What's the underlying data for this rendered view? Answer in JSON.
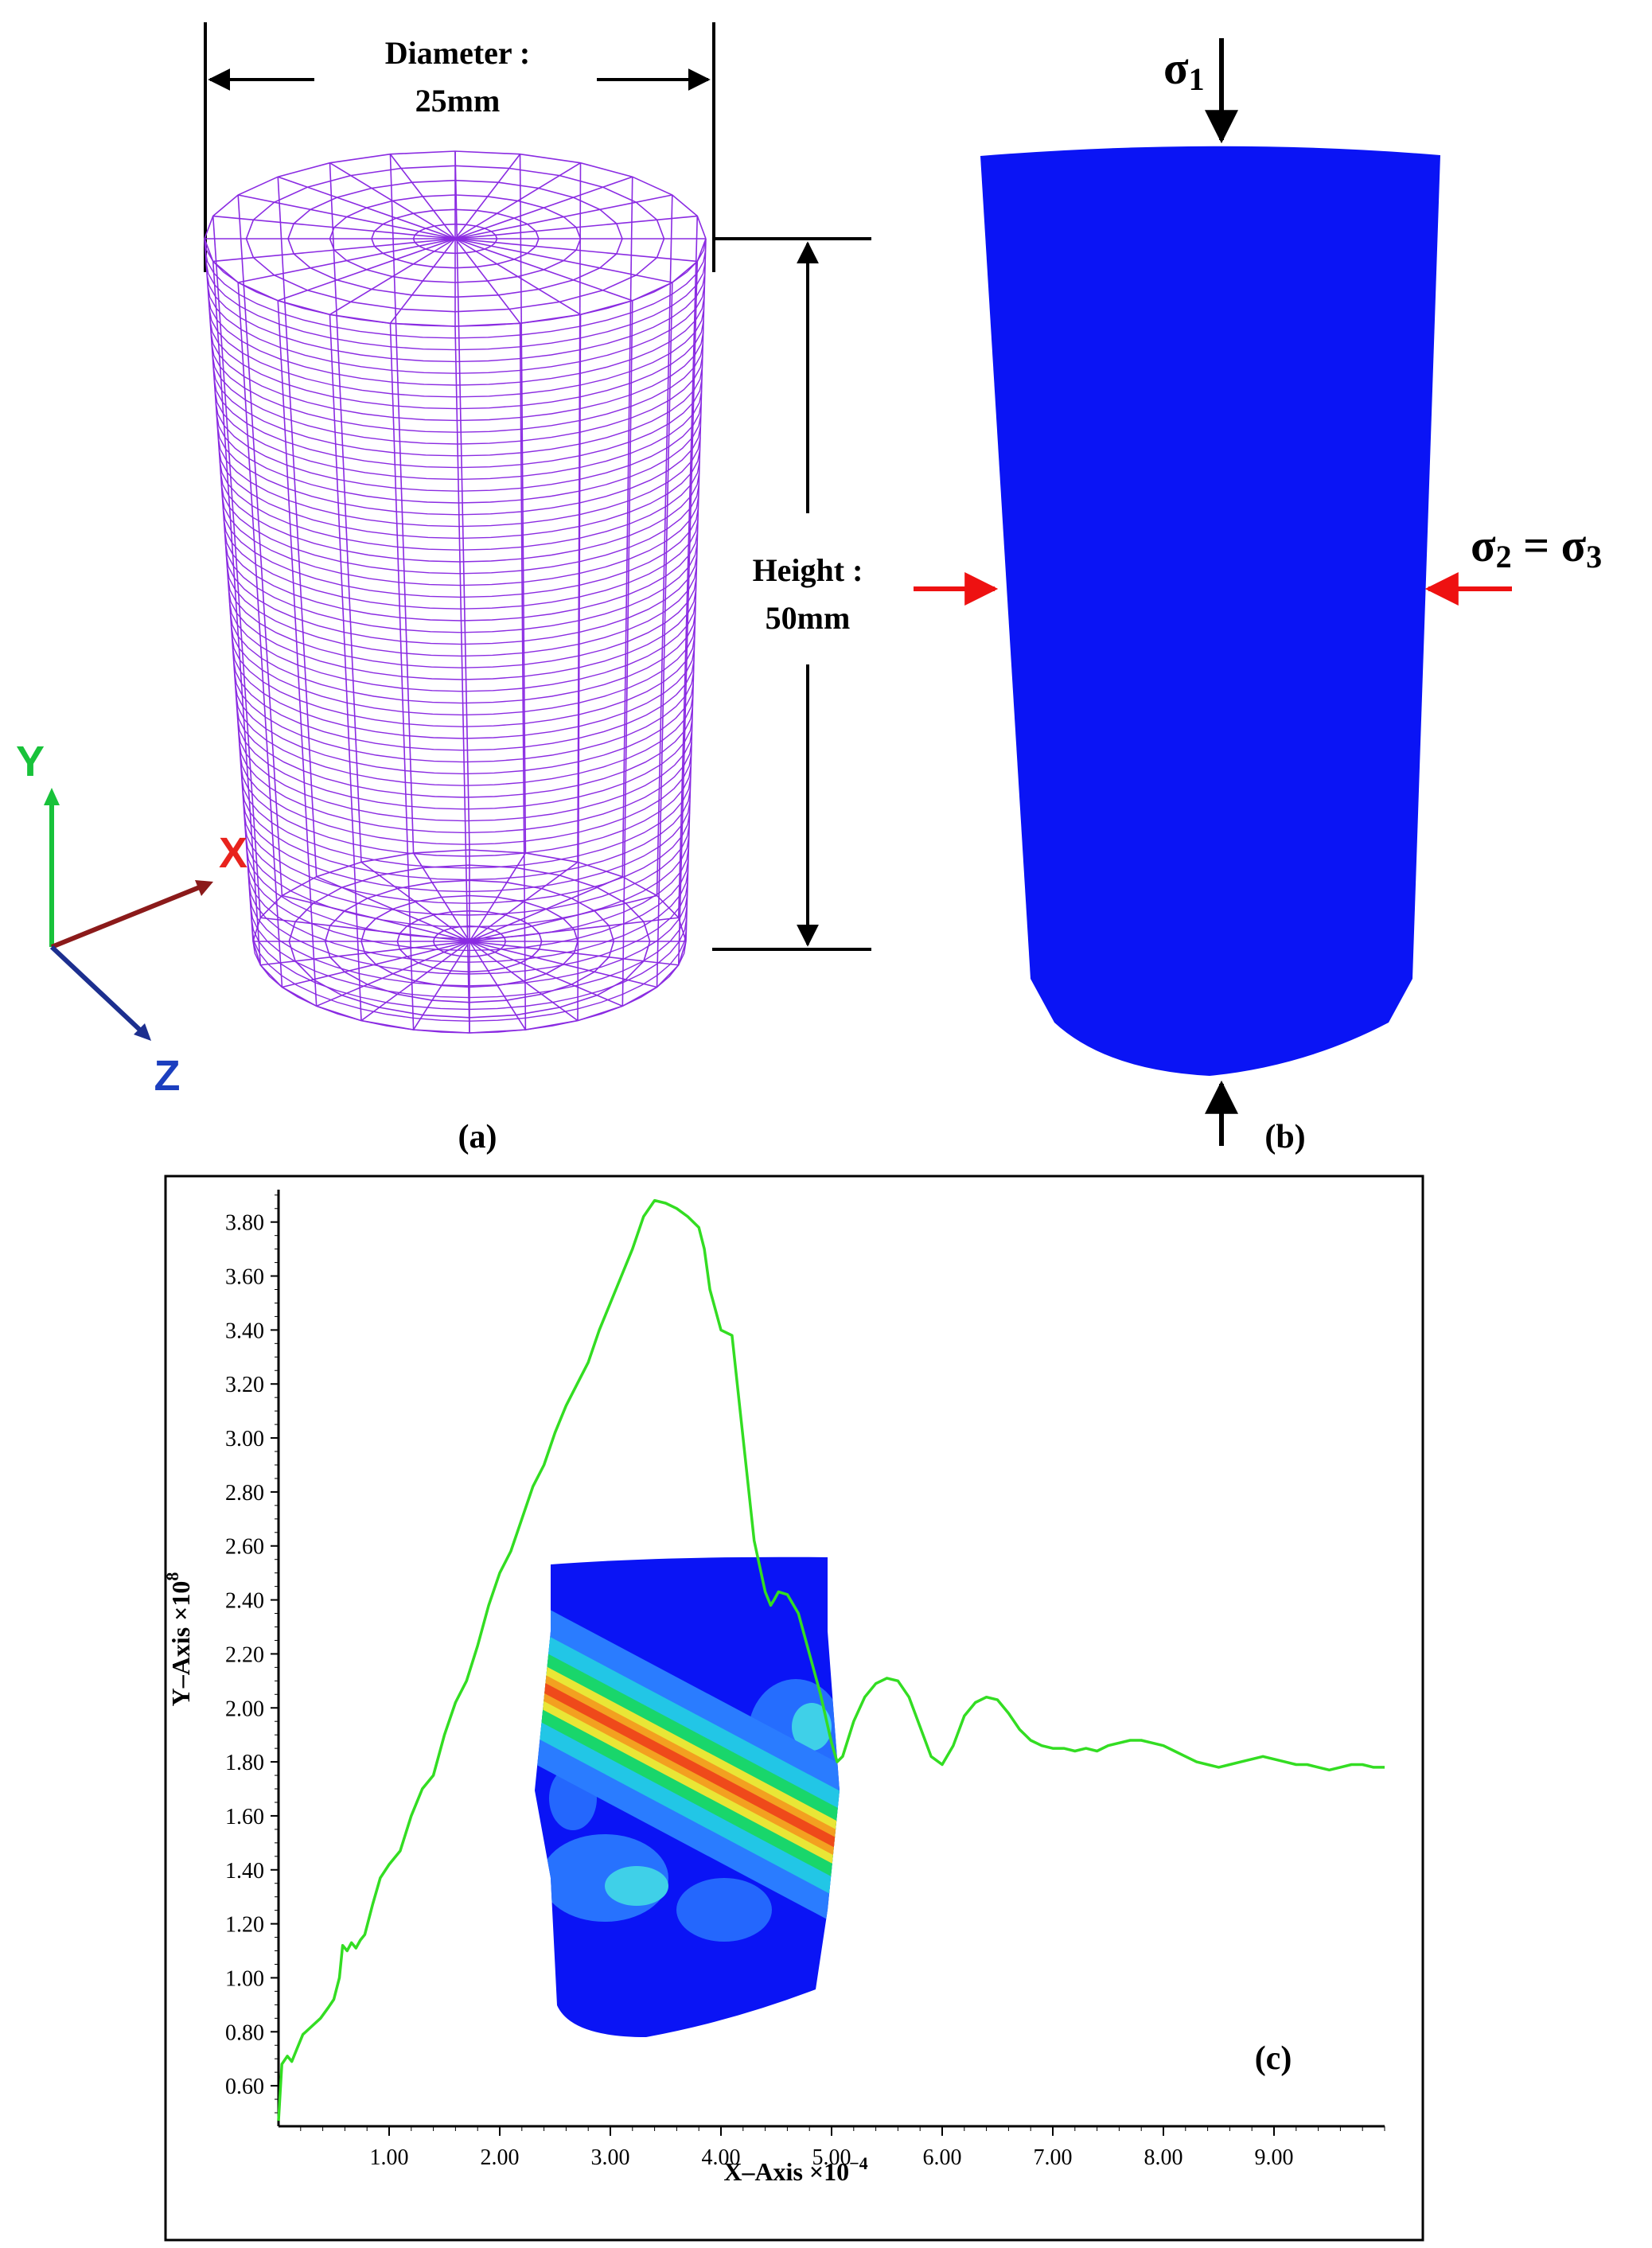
{
  "panel_a": {
    "diameter_label": "Diameter :",
    "diameter_value": "25mm",
    "height_label": "Height :",
    "height_value": "50mm",
    "caption": "(a)",
    "mesh_color": "#8a2be2",
    "axes": {
      "x": "X",
      "y": "Y",
      "z": "Z",
      "x_color": "#e8231d",
      "y_color": "#18c23a",
      "z_color": "#1c3fbf"
    }
  },
  "panel_b": {
    "sigma1_base": "σ",
    "sigma1_sub": "1",
    "sigma23_part1": "σ",
    "sigma23_sub1": "2",
    "sigma23_eq": " = σ",
    "sigma23_sub2": "3",
    "caption": "(b)",
    "body_color": "#0a14f5",
    "lateral_arrow_color": "#ee1111",
    "axial_arrow_color": "#000000"
  },
  "panel_c": {
    "caption": "(c)",
    "line_color": "#33dd22"
  },
  "chart_data": {
    "type": "line",
    "xlabel": "X–Axis ×10",
    "xlabel_exp": "−4",
    "ylabel": "Y–Axis ×10",
    "ylabel_exp": "8",
    "xlim": [
      0.0,
      10.0
    ],
    "ylim": [
      0.45,
      3.92
    ],
    "x_ticks": [
      "1.00",
      "2.00",
      "3.00",
      "4.00",
      "5.00",
      "6.00",
      "7.00",
      "8.00",
      "9.00"
    ],
    "x_tick_values": [
      1,
      2,
      3,
      4,
      5,
      6,
      7,
      8,
      9
    ],
    "y_ticks": [
      "0.60",
      "0.80",
      "1.00",
      "1.20",
      "1.40",
      "1.60",
      "1.80",
      "2.00",
      "2.20",
      "2.40",
      "2.60",
      "2.80",
      "3.00",
      "3.20",
      "3.40",
      "3.60",
      "3.80"
    ],
    "y_tick_values": [
      0.6,
      0.8,
      1.0,
      1.2,
      1.4,
      1.6,
      1.8,
      2.0,
      2.2,
      2.4,
      2.6,
      2.8,
      3.0,
      3.2,
      3.4,
      3.6,
      3.8
    ],
    "series": [
      {
        "x": [
          0.0,
          0.03,
          0.08,
          0.12,
          0.17,
          0.22,
          0.3,
          0.38,
          0.45,
          0.5,
          0.55,
          0.58,
          0.62,
          0.66,
          0.7,
          0.74,
          0.78,
          0.85,
          0.92,
          1.0,
          1.1,
          1.2,
          1.3,
          1.4,
          1.5,
          1.6,
          1.7,
          1.8,
          1.9,
          2.0,
          2.1,
          2.2,
          2.3,
          2.4,
          2.5,
          2.6,
          2.7,
          2.8,
          2.9,
          3.0,
          3.1,
          3.2,
          3.3,
          3.4,
          3.5,
          3.6,
          3.7,
          3.8,
          3.85,
          3.9,
          4.0,
          4.1,
          4.2,
          4.3,
          4.4,
          4.45,
          4.48,
          4.52,
          4.6,
          4.7,
          4.8,
          4.9,
          5.0,
          5.05,
          5.1,
          5.2,
          5.3,
          5.4,
          5.5,
          5.6,
          5.7,
          5.8,
          5.9,
          6.0,
          6.1,
          6.2,
          6.3,
          6.4,
          6.5,
          6.6,
          6.7,
          6.8,
          6.9,
          7.0,
          7.1,
          7.2,
          7.3,
          7.4,
          7.5,
          7.6,
          7.7,
          7.8,
          7.9,
          8.0,
          8.1,
          8.2,
          8.3,
          8.4,
          8.5,
          8.6,
          8.7,
          8.8,
          8.9,
          9.0,
          9.1,
          9.2,
          9.3,
          9.4,
          9.5,
          9.6,
          9.7,
          9.8,
          9.9,
          10.0
        ],
        "y": [
          0.47,
          0.68,
          0.71,
          0.69,
          0.74,
          0.79,
          0.82,
          0.85,
          0.89,
          0.92,
          1.0,
          1.12,
          1.1,
          1.13,
          1.11,
          1.14,
          1.16,
          1.27,
          1.37,
          1.42,
          1.47,
          1.6,
          1.7,
          1.75,
          1.9,
          2.02,
          2.1,
          2.23,
          2.38,
          2.5,
          2.58,
          2.7,
          2.82,
          2.9,
          3.02,
          3.12,
          3.2,
          3.28,
          3.4,
          3.5,
          3.6,
          3.7,
          3.82,
          3.88,
          3.87,
          3.85,
          3.82,
          3.78,
          3.7,
          3.55,
          3.4,
          3.38,
          3.0,
          2.62,
          2.43,
          2.38,
          2.4,
          2.43,
          2.42,
          2.35,
          2.2,
          2.05,
          1.87,
          1.8,
          1.82,
          1.95,
          2.04,
          2.09,
          2.11,
          2.1,
          2.04,
          1.93,
          1.82,
          1.79,
          1.86,
          1.97,
          2.02,
          2.04,
          2.03,
          1.98,
          1.92,
          1.88,
          1.86,
          1.85,
          1.85,
          1.84,
          1.85,
          1.84,
          1.86,
          1.87,
          1.88,
          1.88,
          1.87,
          1.86,
          1.84,
          1.82,
          1.8,
          1.79,
          1.78,
          1.79,
          1.8,
          1.81,
          1.82,
          1.81,
          1.8,
          1.79,
          1.79,
          1.78,
          1.77,
          1.78,
          1.79,
          1.79,
          1.78,
          1.78
        ],
        "color": "#33dd22"
      }
    ],
    "grid": false,
    "legend": "none"
  }
}
